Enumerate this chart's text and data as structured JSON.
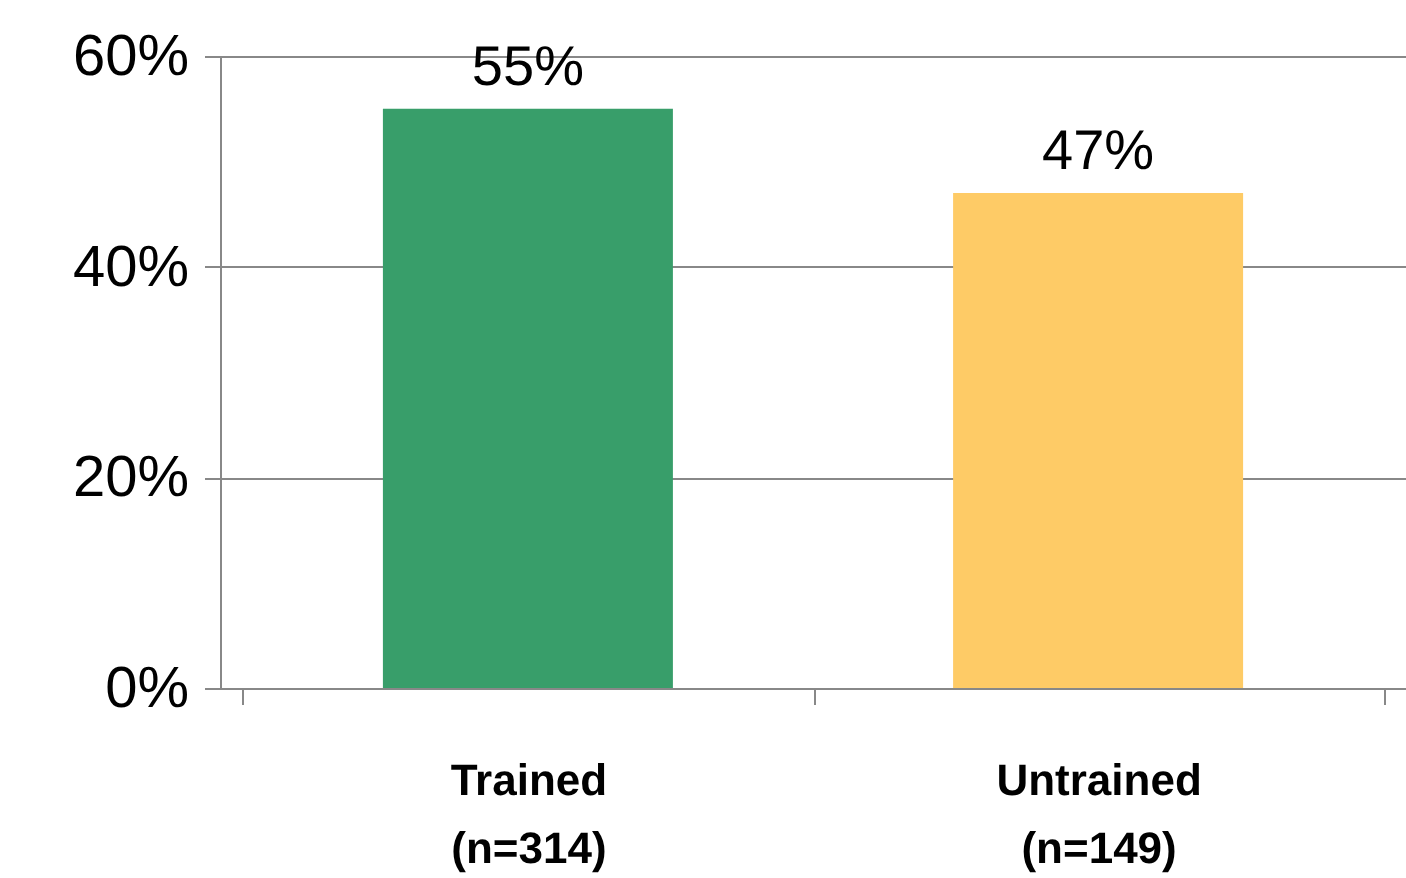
{
  "chart_data": {
    "type": "bar",
    "categories": [
      "Trained\n(n=314)",
      "Untrained\n(n=149)"
    ],
    "values": [
      55,
      47
    ],
    "colors": [
      "#389e6a",
      "#fecb66"
    ],
    "value_labels": [
      "55%",
      "47%"
    ],
    "ylim": [
      0,
      60
    ],
    "yticks": [
      {
        "value": 0,
        "label": "0%"
      },
      {
        "value": 20,
        "label": "20%"
      },
      {
        "value": 40,
        "label": "40%"
      },
      {
        "value": 60,
        "label": "60%"
      }
    ],
    "grid": "y"
  }
}
